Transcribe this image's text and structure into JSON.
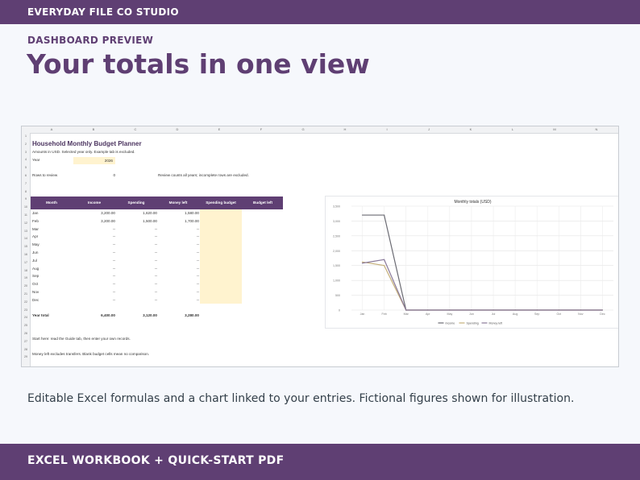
{
  "brand": "EVERYDAY FILE CO STUDIO",
  "eyebrow": "DASHBOARD PREVIEW",
  "headline": "Your totals in one view",
  "caption": "Editable Excel formulas and a chart linked to your entries. Fictional figures shown for illustration.",
  "footer": "EXCEL WORKBOOK + QUICK-START PDF",
  "colors": {
    "accent": "#5f3f73",
    "budget_fill": "#fff3cf"
  },
  "sheet": {
    "columns": [
      "A",
      "B",
      "C",
      "D",
      "E",
      "F",
      "G",
      "H",
      "I",
      "J",
      "K",
      "L",
      "M",
      "N"
    ],
    "row_numbers": [
      "1",
      "2",
      "3",
      "4",
      "5",
      "6",
      "7",
      "8",
      "9",
      "10",
      "11",
      "12",
      "13",
      "14",
      "15",
      "16",
      "17",
      "18",
      "19",
      "20",
      "21",
      "22",
      "23",
      "24",
      "25",
      "26",
      "27",
      "28",
      "29"
    ],
    "title": "Household Monthly Budget Planner",
    "subtitle": "Amounts in USD. Selected year only. Example tab is excluded.",
    "year_label": "Year",
    "year_value": "2026",
    "rows_to_review_label": "Rows to review",
    "rows_to_review_value": "0",
    "review_note": "Review counts all years; incomplete rows are excluded.",
    "headers": [
      "Month",
      "Income",
      "Spending",
      "Money left",
      "Spending budget",
      "Budget left"
    ],
    "rows": [
      {
        "month": "Jan",
        "income": "3,200.00",
        "spending": "1,620.00",
        "left": "1,580.00"
      },
      {
        "month": "Feb",
        "income": "3,200.00",
        "spending": "1,500.00",
        "left": "1,700.00"
      },
      {
        "month": "Mar",
        "income": "--",
        "spending": "--",
        "left": "--"
      },
      {
        "month": "Apr",
        "income": "--",
        "spending": "--",
        "left": "--"
      },
      {
        "month": "May",
        "income": "--",
        "spending": "--",
        "left": "--"
      },
      {
        "month": "Jun",
        "income": "--",
        "spending": "--",
        "left": "--"
      },
      {
        "month": "Jul",
        "income": "--",
        "spending": "--",
        "left": "--"
      },
      {
        "month": "Aug",
        "income": "--",
        "spending": "--",
        "left": "--"
      },
      {
        "month": "Sep",
        "income": "--",
        "spending": "--",
        "left": "--"
      },
      {
        "month": "Oct",
        "income": "--",
        "spending": "--",
        "left": "--"
      },
      {
        "month": "Nov",
        "income": "--",
        "spending": "--",
        "left": "--"
      },
      {
        "month": "Dec",
        "income": "--",
        "spending": "--",
        "left": "--"
      }
    ],
    "total_label": "Year total",
    "total_income": "6,400.00",
    "total_spending": "3,120.00",
    "total_left": "3,280.00",
    "note1": "Start here: read the Guide tab, then enter your own records.",
    "note2": "Money left excludes transfers. Blank budget cells mean no comparison."
  },
  "chart_data": {
    "type": "line",
    "title": "Monthly totals (USD)",
    "categories": [
      "Jan",
      "Feb",
      "Mar",
      "Apr",
      "May",
      "Jun",
      "Jul",
      "Aug",
      "Sep",
      "Oct",
      "Nov",
      "Dec"
    ],
    "ylim": [
      0,
      3500
    ],
    "yticks": [
      "0",
      "500",
      "1,000",
      "1,500",
      "2,000",
      "2,500",
      "3,000",
      "3,500"
    ],
    "series": [
      {
        "name": "Income",
        "color": "#6b6b73",
        "values": [
          3200,
          3200,
          0,
          0,
          0,
          0,
          0,
          0,
          0,
          0,
          0,
          0
        ]
      },
      {
        "name": "Spending",
        "color": "#c5b07a",
        "values": [
          1620,
          1500,
          0,
          0,
          0,
          0,
          0,
          0,
          0,
          0,
          0,
          0
        ]
      },
      {
        "name": "Money left",
        "color": "#8a7a9a",
        "values": [
          1580,
          1700,
          0,
          0,
          0,
          0,
          0,
          0,
          0,
          0,
          0,
          0
        ]
      }
    ],
    "grid": true,
    "legend": "bottom"
  }
}
